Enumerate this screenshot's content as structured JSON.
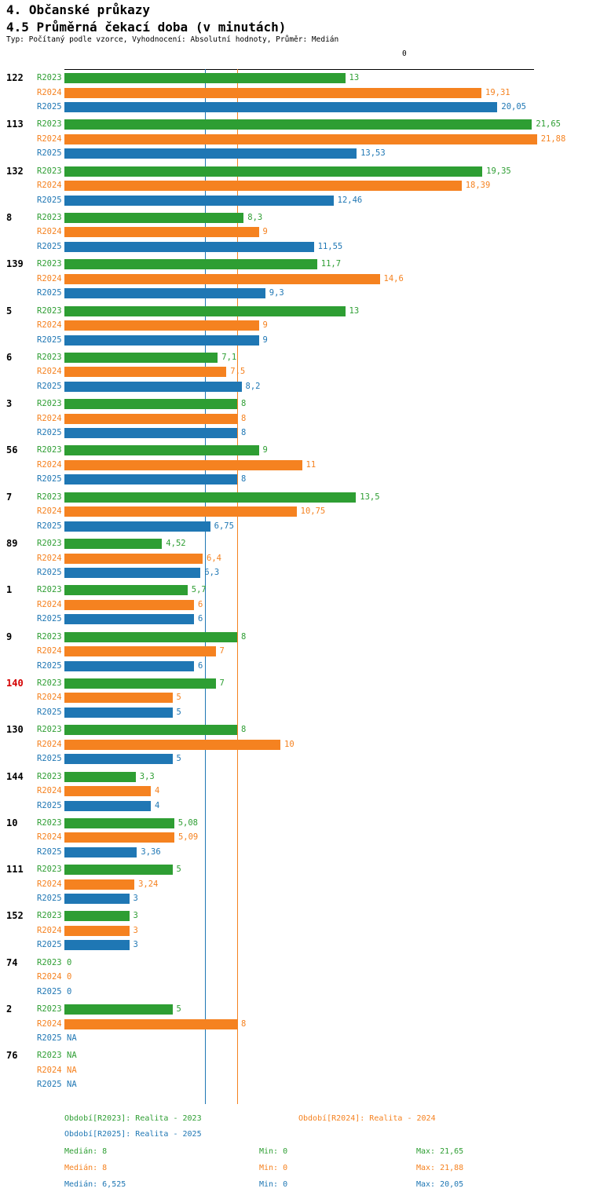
{
  "colors": {
    "r2023": "#2e9e33",
    "r2024": "#f58220",
    "r2025": "#1f77b4",
    "highlight": "#d40000",
    "axis": "#000000"
  },
  "chart_data": {
    "type": "bar",
    "orientation": "horizontal",
    "title": "4. Občanské průkazy",
    "subtitle": "4.5 Průměrná čekací doba (v minutách)",
    "meta": "Typ: Počítaný podle vzorce, Vyhodnocení: Absolutní hodnoty, Průměr: Medián",
    "x_axis_zero_label": "0",
    "xlim": [
      0,
      22
    ],
    "grid": false,
    "legend_position": "bottom",
    "series_names": [
      "R2023",
      "R2024",
      "R2025"
    ],
    "median_lines": [
      {
        "series": "R2023",
        "value": 8
      },
      {
        "series": "R2024",
        "value": 8
      },
      {
        "series": "R2025",
        "value": 6.525
      }
    ],
    "groups": [
      {
        "label": "122",
        "highlight": false,
        "values": [
          {
            "value": 13,
            "display": "13"
          },
          {
            "value": 19.31,
            "display": "19,31"
          },
          {
            "value": 20.05,
            "display": "20,05"
          }
        ]
      },
      {
        "label": "113",
        "highlight": false,
        "values": [
          {
            "value": 21.65,
            "display": "21,65"
          },
          {
            "value": 21.88,
            "display": "21,88"
          },
          {
            "value": 13.53,
            "display": "13,53"
          }
        ]
      },
      {
        "label": "132",
        "highlight": false,
        "values": [
          {
            "value": 19.35,
            "display": "19,35"
          },
          {
            "value": 18.39,
            "display": "18,39"
          },
          {
            "value": 12.46,
            "display": "12,46"
          }
        ]
      },
      {
        "label": "8",
        "highlight": false,
        "values": [
          {
            "value": 8.3,
            "display": "8,3"
          },
          {
            "value": 9,
            "display": "9"
          },
          {
            "value": 11.55,
            "display": "11,55"
          }
        ]
      },
      {
        "label": "139",
        "highlight": false,
        "values": [
          {
            "value": 11.7,
            "display": "11,7"
          },
          {
            "value": 14.6,
            "display": "14,6"
          },
          {
            "value": 9.3,
            "display": "9,3"
          }
        ]
      },
      {
        "label": "5",
        "highlight": false,
        "values": [
          {
            "value": 13,
            "display": "13"
          },
          {
            "value": 9,
            "display": "9"
          },
          {
            "value": 9,
            "display": "9"
          }
        ]
      },
      {
        "label": "6",
        "highlight": false,
        "values": [
          {
            "value": 7.1,
            "display": "7,1"
          },
          {
            "value": 7.5,
            "display": "7,5"
          },
          {
            "value": 8.2,
            "display": "8,2"
          }
        ]
      },
      {
        "label": "3",
        "highlight": false,
        "values": [
          {
            "value": 8,
            "display": "8"
          },
          {
            "value": 8,
            "display": "8"
          },
          {
            "value": 8,
            "display": "8"
          }
        ]
      },
      {
        "label": "56",
        "highlight": false,
        "values": [
          {
            "value": 9,
            "display": "9"
          },
          {
            "value": 11,
            "display": "11"
          },
          {
            "value": 8,
            "display": "8"
          }
        ]
      },
      {
        "label": "7",
        "highlight": false,
        "values": [
          {
            "value": 13.5,
            "display": "13,5"
          },
          {
            "value": 10.75,
            "display": "10,75"
          },
          {
            "value": 6.75,
            "display": "6,75"
          }
        ]
      },
      {
        "label": "89",
        "highlight": false,
        "values": [
          {
            "value": 4.52,
            "display": "4,52"
          },
          {
            "value": 6.4,
            "display": "6,4"
          },
          {
            "value": 6.3,
            "display": "6,3"
          }
        ]
      },
      {
        "label": "1",
        "highlight": false,
        "values": [
          {
            "value": 5.7,
            "display": "5,7"
          },
          {
            "value": 6,
            "display": "6"
          },
          {
            "value": 6,
            "display": "6"
          }
        ]
      },
      {
        "label": "9",
        "highlight": false,
        "values": [
          {
            "value": 8,
            "display": "8"
          },
          {
            "value": 7,
            "display": "7"
          },
          {
            "value": 6,
            "display": "6"
          }
        ]
      },
      {
        "label": "140",
        "highlight": true,
        "values": [
          {
            "value": 7,
            "display": "7"
          },
          {
            "value": 5,
            "display": "5"
          },
          {
            "value": 5,
            "display": "5"
          }
        ]
      },
      {
        "label": "130",
        "highlight": false,
        "values": [
          {
            "value": 8,
            "display": "8"
          },
          {
            "value": 10,
            "display": "10"
          },
          {
            "value": 5,
            "display": "5"
          }
        ]
      },
      {
        "label": "144",
        "highlight": false,
        "values": [
          {
            "value": 3.3,
            "display": "3,3"
          },
          {
            "value": 4,
            "display": "4"
          },
          {
            "value": 4,
            "display": "4"
          }
        ]
      },
      {
        "label": "10",
        "highlight": false,
        "values": [
          {
            "value": 5.08,
            "display": "5,08"
          },
          {
            "value": 5.09,
            "display": "5,09"
          },
          {
            "value": 3.36,
            "display": "3,36"
          }
        ]
      },
      {
        "label": "111",
        "highlight": false,
        "values": [
          {
            "value": 5,
            "display": "5"
          },
          {
            "value": 3.24,
            "display": "3,24"
          },
          {
            "value": 3,
            "display": "3"
          }
        ]
      },
      {
        "label": "152",
        "highlight": false,
        "values": [
          {
            "value": 3,
            "display": "3"
          },
          {
            "value": 3,
            "display": "3"
          },
          {
            "value": 3,
            "display": "3"
          }
        ]
      },
      {
        "label": "74",
        "highlight": false,
        "values": [
          {
            "value": 0,
            "display": "0"
          },
          {
            "value": 0,
            "display": "0"
          },
          {
            "value": 0,
            "display": "0"
          }
        ]
      },
      {
        "label": "2",
        "highlight": false,
        "values": [
          {
            "value": 5,
            "display": "5"
          },
          {
            "value": 8,
            "display": "8"
          },
          {
            "value": null,
            "display": "NA"
          }
        ]
      },
      {
        "label": "76",
        "highlight": false,
        "values": [
          {
            "value": null,
            "display": "NA"
          },
          {
            "value": null,
            "display": "NA"
          },
          {
            "value": null,
            "display": "NA"
          }
        ]
      }
    ]
  },
  "legend": {
    "r2023": "Období[R2023]: Realita - 2023",
    "r2024": "Období[R2024]: Realita - 2024",
    "r2025": "Období[R2025]: Realita - 2025"
  },
  "stats": {
    "r2023": {
      "median": "Medián: 8",
      "min": "Min: 0",
      "max": "Max: 21,65"
    },
    "r2024": {
      "median": "Medián: 8",
      "min": "Min: 0",
      "max": "Max: 21,88"
    },
    "r2025": {
      "median": "Medián: 6,525",
      "min": "Min: 0",
      "max": "Max: 20,05"
    }
  }
}
